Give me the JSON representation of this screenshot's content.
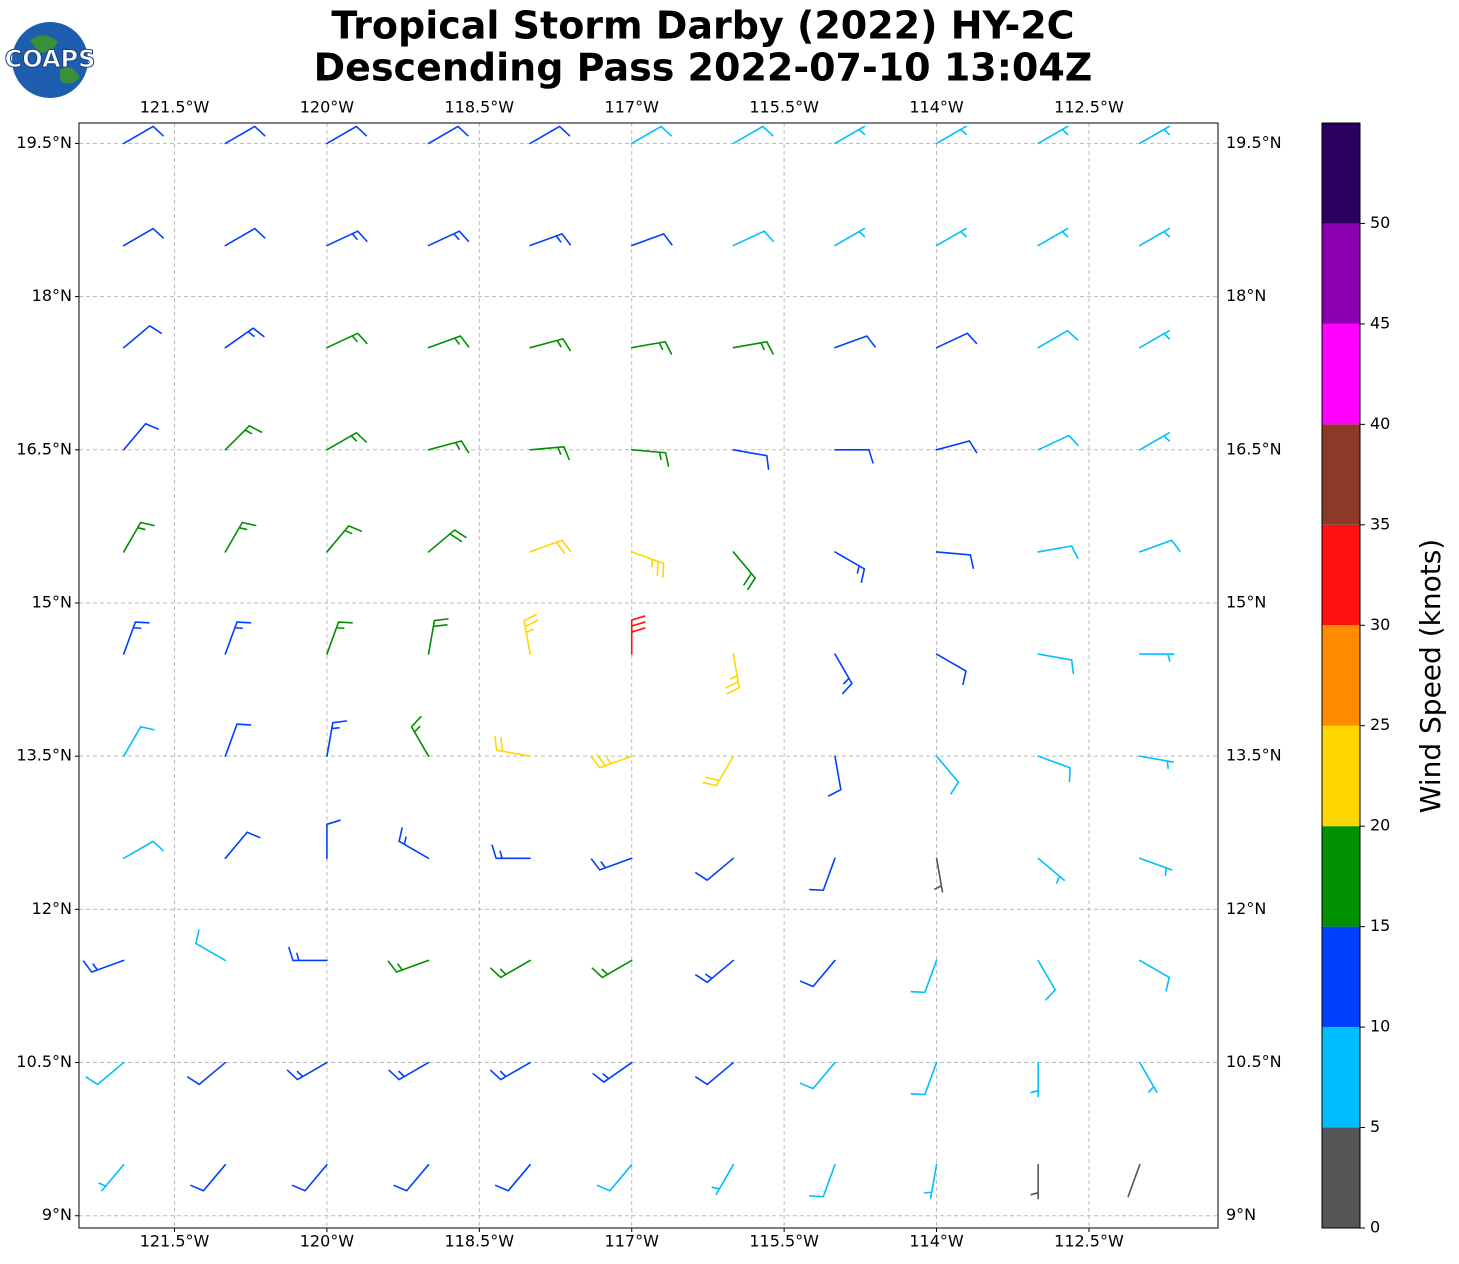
{
  "chart_data": {
    "type": "barbs",
    "title": "Tropical Storm Darby (2022) HY-2C",
    "subtitle": "Descending Pass 2022-07-10 13:04Z",
    "logo": "COAPS",
    "xlim": [
      -122.44,
      -111.23
    ],
    "ylim": [
      8.88,
      19.7
    ],
    "grid": true,
    "xticks": [
      {
        "value": -121.5,
        "label": "121.5°W"
      },
      {
        "value": -120,
        "label": "120°W"
      },
      {
        "value": -118.5,
        "label": "118.5°W"
      },
      {
        "value": -117,
        "label": "117°W"
      },
      {
        "value": -115.5,
        "label": "115.5°W"
      },
      {
        "value": -114,
        "label": "114°W"
      },
      {
        "value": -112.5,
        "label": "112.5°W"
      }
    ],
    "yticks": [
      {
        "value": 19.5,
        "label": "19.5°N"
      },
      {
        "value": 18,
        "label": "18°N"
      },
      {
        "value": 16.5,
        "label": "16.5°N"
      },
      {
        "value": 15,
        "label": "15°N"
      },
      {
        "value": 13.5,
        "label": "13.5°N"
      },
      {
        "value": 12,
        "label": "12°N"
      },
      {
        "value": 10.5,
        "label": "10.5°N"
      },
      {
        "value": 9,
        "label": "9°N"
      }
    ],
    "lon": [
      -122,
      -121,
      -120,
      -119,
      -118,
      -117,
      -116,
      -115,
      -114,
      -113,
      -112
    ],
    "lat": [
      19.5,
      18.5,
      17.5,
      16.5,
      15.5,
      14.5,
      13.5,
      12.5,
      11.5,
      10.5,
      9.5
    ],
    "speed": [
      [
        12,
        12,
        12,
        12,
        12,
        8,
        8,
        7,
        7,
        7,
        6
      ],
      [
        12,
        12,
        13,
        13,
        13,
        12,
        8,
        7,
        7,
        7,
        6
      ],
      [
        12,
        13,
        16,
        16,
        17,
        16,
        16,
        12,
        11,
        8,
        7
      ],
      [
        12,
        16,
        16,
        17,
        17,
        16,
        12,
        12,
        11,
        8,
        7
      ],
      [
        16,
        16,
        16,
        18,
        22,
        23,
        18,
        13,
        12,
        9,
        8
      ],
      [
        13,
        13,
        17,
        19,
        24,
        30,
        24,
        13,
        12,
        9,
        7
      ],
      [
        8,
        12,
        14,
        16,
        22,
        24,
        20,
        12,
        9,
        9,
        6
      ],
      [
        9,
        12,
        12,
        13,
        14,
        13,
        12,
        10,
        4,
        7,
        7
      ],
      [
        14,
        9,
        14,
        16,
        17,
        16,
        14,
        12,
        9,
        8,
        8
      ],
      [
        8,
        12,
        13,
        13,
        14,
        13,
        12,
        9,
        8,
        7,
        6
      ],
      [
        7,
        12,
        12,
        12,
        10,
        8,
        7,
        8,
        7,
        3,
        2
      ]
    ],
    "direction": [
      [
        60,
        60,
        60,
        60,
        60,
        60,
        60,
        60,
        60,
        60,
        60
      ],
      [
        60,
        60,
        65,
        65,
        70,
        70,
        65,
        60,
        60,
        60,
        60
      ],
      [
        50,
        55,
        65,
        70,
        75,
        80,
        80,
        70,
        65,
        60,
        60
      ],
      [
        40,
        45,
        60,
        75,
        85,
        95,
        100,
        90,
        75,
        65,
        60
      ],
      [
        30,
        30,
        40,
        50,
        70,
        110,
        140,
        120,
        95,
        80,
        70
      ],
      [
        20,
        20,
        20,
        10,
        350,
        0,
        170,
        150,
        120,
        100,
        90
      ],
      [
        30,
        20,
        10,
        330,
        280,
        250,
        210,
        170,
        140,
        110,
        100
      ],
      [
        60,
        40,
        0,
        300,
        270,
        250,
        230,
        200,
        170,
        130,
        110
      ],
      [
        250,
        300,
        270,
        250,
        240,
        240,
        230,
        220,
        200,
        150,
        120
      ],
      [
        230,
        230,
        240,
        240,
        240,
        235,
        230,
        220,
        200,
        180,
        150
      ],
      [
        220,
        220,
        220,
        220,
        220,
        220,
        210,
        200,
        190,
        180,
        200
      ]
    ],
    "colorbar": {
      "label": "Wind Speed (knots)",
      "bounds": [
        0,
        5,
        10,
        15,
        20,
        25,
        30,
        35,
        40,
        45,
        50,
        55
      ],
      "colors": [
        "#555555",
        "#00bfff",
        "#0040ff",
        "#009000",
        "#ffd700",
        "#ff8c00",
        "#ff1111",
        "#8b3a2a",
        "#ff00ff",
        "#8800b0",
        "#2a0060"
      ],
      "ticks": [
        0,
        5,
        10,
        15,
        20,
        25,
        30,
        35,
        40,
        45,
        50
      ]
    }
  }
}
